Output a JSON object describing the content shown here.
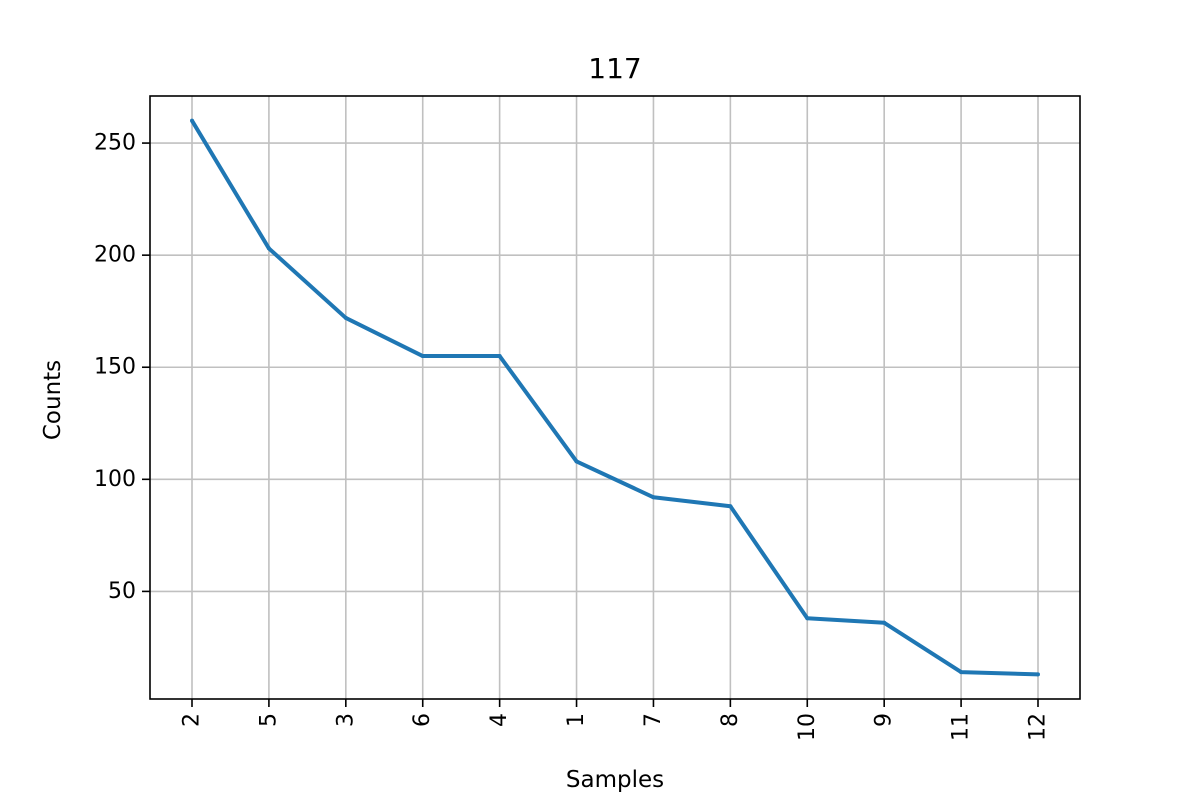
{
  "chart_data": {
    "type": "line",
    "title": "117",
    "xlabel": "Samples",
    "ylabel": "Counts",
    "categories": [
      "2",
      "5",
      "3",
      "6",
      "4",
      "1",
      "7",
      "8",
      "10",
      "9",
      "11",
      "12"
    ],
    "series": [
      {
        "values": [
          260,
          203,
          172,
          155,
          155,
          108,
          92,
          88,
          38,
          36,
          14,
          13
        ]
      }
    ],
    "yticks": [
      50,
      100,
      150,
      200,
      250
    ],
    "ylim": [
      2,
      271
    ],
    "grid": true,
    "line_color": "#1f77b4",
    "grid_color": "#c0c0c0"
  }
}
